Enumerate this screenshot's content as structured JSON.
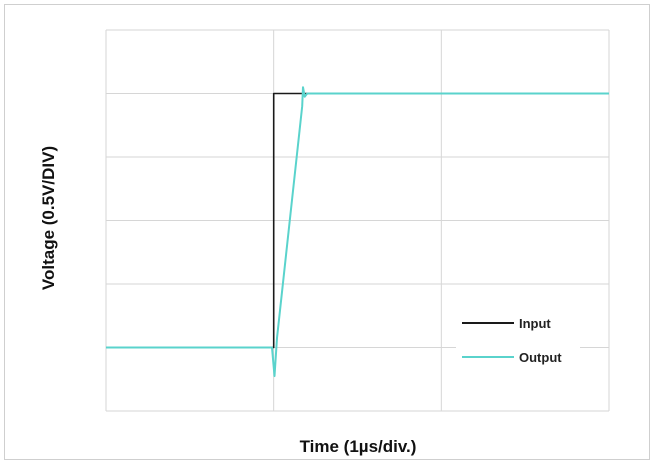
{
  "chart_data": {
    "type": "line",
    "title": "",
    "xlabel": "Time (1µs/div.)",
    "ylabel": "Voltage (0.5V/DIV)",
    "x_divisions": 3,
    "y_divisions": 6,
    "xlim": [
      0,
      3
    ],
    "ylim": [
      0,
      6
    ],
    "grid": true,
    "tick_labels": false,
    "legend_position": "bottom-right",
    "series": [
      {
        "name": "Input",
        "color": "#1a1a1a",
        "points": [
          [
            0,
            1
          ],
          [
            1.0,
            1
          ],
          [
            1.0,
            5
          ],
          [
            3,
            5
          ]
        ]
      },
      {
        "name": "Output",
        "color": "#5ad3cc",
        "points": [
          [
            0,
            1
          ],
          [
            0.99,
            1
          ],
          [
            1.005,
            0.55
          ],
          [
            1.02,
            1.15
          ],
          [
            1.17,
            4.8
          ],
          [
            1.175,
            5.1
          ],
          [
            1.185,
            4.95
          ],
          [
            1.2,
            5
          ],
          [
            3,
            5
          ]
        ]
      }
    ]
  }
}
